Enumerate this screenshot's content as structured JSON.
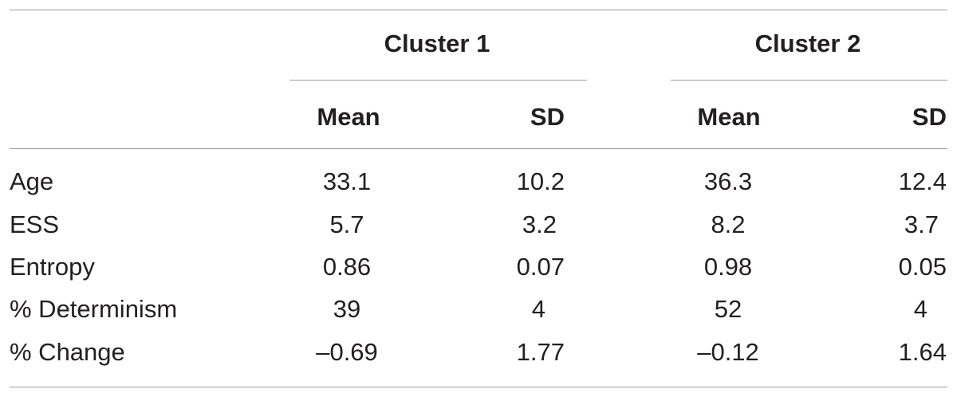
{
  "table": {
    "group_headers": [
      "Cluster 1",
      "Cluster 2"
    ],
    "sub_headers": [
      "Mean",
      "SD",
      "Mean",
      "SD"
    ],
    "rows": [
      {
        "label": "Age",
        "values": [
          "33.1",
          "10.2",
          "36.3",
          "12.4"
        ]
      },
      {
        "label": "ESS",
        "values": [
          "5.7",
          "3.2",
          "8.2",
          "3.7"
        ]
      },
      {
        "label": "Entropy",
        "values": [
          "0.86",
          "0.07",
          "0.98",
          "0.05"
        ]
      },
      {
        "label": "% Determinism",
        "values": [
          "39",
          "4",
          "52",
          "4"
        ]
      },
      {
        "label": "% Change",
        "values": [
          "–0.69",
          "1.77",
          "–0.12",
          "1.64"
        ]
      }
    ]
  }
}
